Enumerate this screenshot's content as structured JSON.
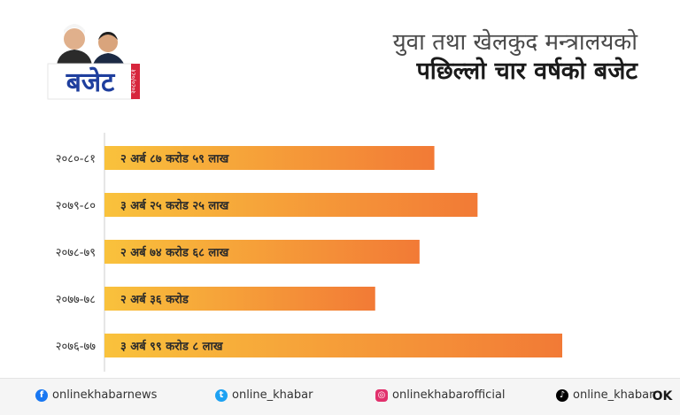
{
  "header": {
    "logo_text": "बजेट",
    "logo_year": "२०८०/०८१",
    "title_line1": "युवा तथा खेलकुद मन्त्रालयको",
    "title_line2": "पछिल्लो चार वर्षको बजेट"
  },
  "chart_data": {
    "type": "bar",
    "orientation": "horizontal",
    "categories": [
      "२०८०-८१",
      "२०७९-८०",
      "२०७८-७९",
      "२०७७-७८",
      "२०७६-७७"
    ],
    "values": [
      287.59,
      325.25,
      274.68,
      236.0,
      399.08
    ],
    "value_labels": [
      "२ अर्ब ८७ करोड ५९ लाख",
      "३ अर्ब २५ करोड २५ लाख",
      "२ अर्ब ७४ करोड ६८ लाख",
      "२ अर्ब ३६ करोड",
      "३ अर्ब ९९ करोड ८ लाख"
    ],
    "colors": {
      "bar_start": "#f9c23c",
      "bar_end": "#f27a36",
      "axis": "#cccccc"
    },
    "grid": false,
    "legend": false
  },
  "footer": {
    "facebook": "onlinekhabarnews",
    "twitter": "online_khabar",
    "instagram": "onlinekhabarofficial",
    "tiktok": "online_khabar",
    "brand": "OK",
    "icons": [
      "facebook-icon",
      "twitter-icon",
      "instagram-icon",
      "tiktok-icon"
    ],
    "icon_colors": {
      "facebook": "#1877f2",
      "twitter": "#1da1f2",
      "instagram": "#e1306c",
      "tiktok": "#000000"
    }
  }
}
